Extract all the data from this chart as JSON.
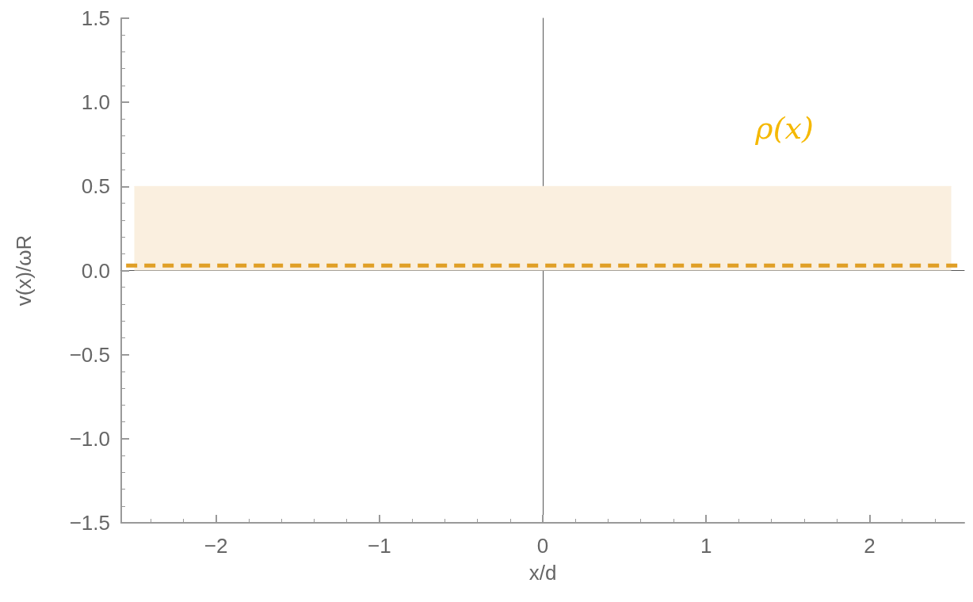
{
  "chart_data": {
    "type": "line",
    "xlabel": "x/d",
    "ylabel": "v(x)/ωR",
    "series": [
      {
        "type": "area",
        "color": "#faefdf",
        "x": [
          -2.5,
          2.5
        ],
        "values": [
          0.5,
          0.5
        ]
      },
      {
        "type": "line",
        "color": "#e09f26",
        "line_style": "dashed",
        "x": [
          -2.55,
          2.55
        ],
        "values": [
          0.03,
          0.03
        ]
      }
    ],
    "annotations": [
      "ρ(x)"
    ],
    "xlim": [
      -2.58,
      2.58
    ],
    "xticks": [
      {
        "value": -2,
        "label": "−2"
      },
      {
        "value": -1,
        "label": "−1"
      },
      0,
      1,
      2
    ],
    "ylim": [
      -1.5,
      1.5
    ],
    "yticks": [
      {
        "value": -1.5,
        "label": "−1.5"
      },
      {
        "value": -1,
        "label": "−1.0"
      },
      {
        "value": -0.5,
        "label": "−0.5"
      },
      {
        "value": 0,
        "label": "0.0"
      },
      0.5,
      {
        "value": 1,
        "label": "1.0"
      },
      1.5
    ],
    "marker": "none"
  }
}
